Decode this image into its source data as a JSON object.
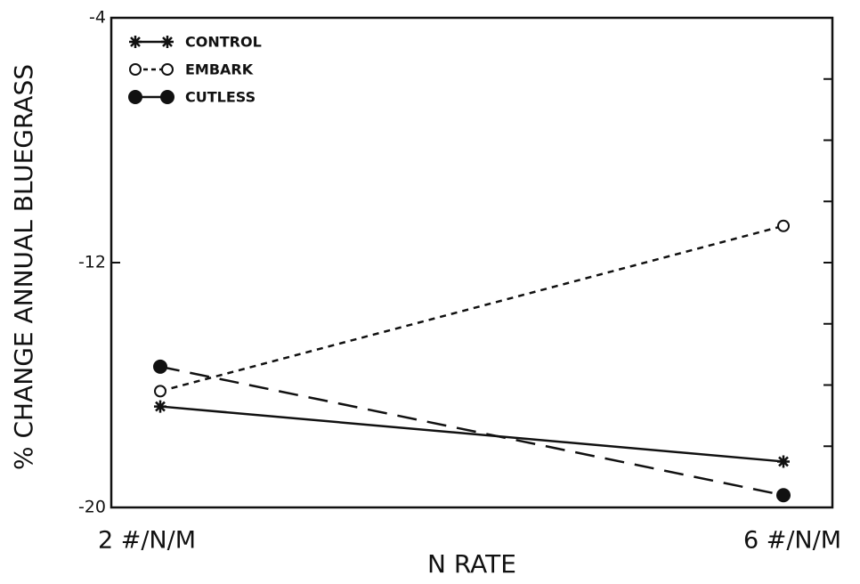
{
  "chart_data": {
    "type": "line",
    "xlabel": "N RATE",
    "ylabel": "% CHANGE ANNUAL BLUEGRASS",
    "categories": [
      "2 #/N/M",
      "6 #/N/M"
    ],
    "series": [
      {
        "name": "CONTROL",
        "color": "#111111",
        "values": [
          -16.7,
          -18.5
        ]
      },
      {
        "name": "EMBARK",
        "color": "#111111",
        "values": [
          -16.2,
          -10.8
        ]
      },
      {
        "name": "CUTLESS",
        "color": "#111111",
        "values": [
          -15.4,
          -19.6
        ]
      }
    ],
    "ylim": [
      -20,
      -4
    ],
    "yticks": [
      -20,
      -12,
      -4
    ],
    "yminorticks": [
      -18,
      -16,
      -14,
      -10,
      -8,
      -6
    ],
    "legend": "upper left"
  }
}
